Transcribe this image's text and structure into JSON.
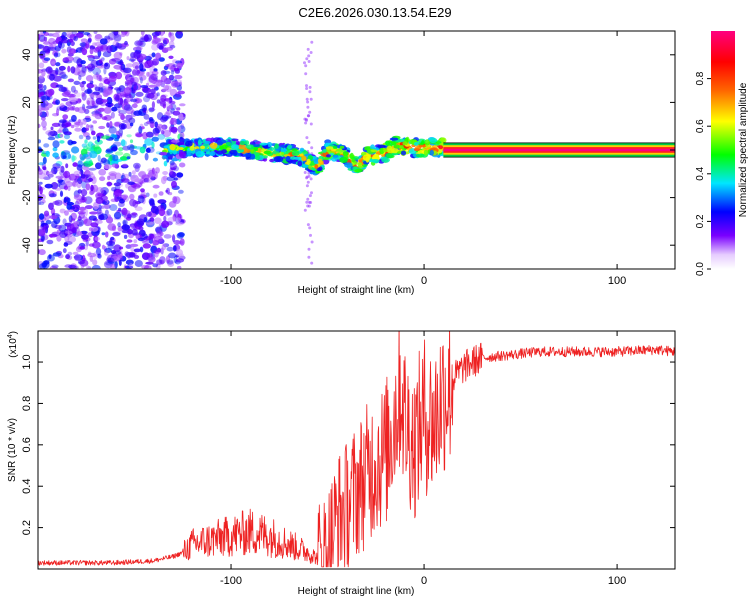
{
  "figure_title": "C2E6.2026.030.13.54.E29",
  "chart_data": [
    {
      "type": "heatmap",
      "title": "C2E6.2026.030.13.54.E29",
      "xlabel": "Height of straight line (km)",
      "ylabel": "Frequency (Hz)",
      "xlim": [
        -200,
        130
      ],
      "ylim": [
        -50,
        50
      ],
      "xticks": [
        -100,
        0,
        100
      ],
      "xtick_labels": [
        "-100",
        "0",
        "100"
      ],
      "yticks": [
        -40,
        -20,
        0,
        20,
        40
      ],
      "ytick_labels": [
        "-40",
        "-20",
        "0",
        "20",
        "40"
      ],
      "colorbar": {
        "label": "Normalized spectral amplitude",
        "range": [
          0,
          1
        ],
        "ticks": [
          0.0,
          0.2,
          0.4,
          0.6,
          0.8
        ],
        "tick_labels": [
          "0.0",
          "0.2",
          "0.4",
          "0.6",
          "0.8"
        ],
        "colors": [
          "#e6ccff",
          "#7a00ff",
          "#0000ff",
          "#00e6ff",
          "#00ff00",
          "#ffff00",
          "#ff6600",
          "#ff0000",
          "#ff0080"
        ]
      },
      "regions": [
        {
          "name": "diffuse noise",
          "x_range": [
            -200,
            -125
          ],
          "freq_spread": 50,
          "level": 0.15
        },
        {
          "name": "sparse noise streak",
          "x_range": [
            -62,
            -58
          ],
          "freq_spread": 50,
          "level": 0.1
        },
        {
          "name": "signal track",
          "x_range": [
            -135,
            10
          ],
          "level": 0.45
        },
        {
          "name": "steady tone",
          "x_range": [
            10,
            130
          ],
          "level": 0.8
        }
      ],
      "signal_track": {
        "x": [
          -135,
          -120,
          -100,
          -80,
          -65,
          -58,
          -55,
          -50,
          -45,
          -40,
          -35,
          -30,
          -25,
          -20,
          -15,
          -10,
          -5,
          0,
          5,
          10
        ],
        "freq_hz": [
          0,
          1,
          1,
          -1,
          -2,
          -6,
          -7,
          0,
          -1,
          -3,
          -7,
          -3,
          -2,
          -1,
          2,
          2,
          1,
          1,
          1,
          1
        ]
      },
      "steady_tone": {
        "x_range": [
          10,
          130
        ],
        "freq_hz": 0
      }
    },
    {
      "type": "line",
      "xlabel": "Height of straight line (km)",
      "ylabel": "SNR (10 * v/v)",
      "y_scale_label": "(x10^4)",
      "y_scale_base": "(x10",
      "y_scale_exp": "4",
      "y_scale_close": ")",
      "xlim": [
        -200,
        130
      ],
      "ylim": [
        0,
        1.15
      ],
      "xticks": [
        -100,
        0,
        100
      ],
      "xtick_labels": [
        "-100",
        "0",
        "100"
      ],
      "yticks": [
        0.2,
        0.4,
        0.6,
        0.8,
        1.0
      ],
      "ytick_labels": [
        "0.2",
        "0.4",
        "0.6",
        "0.8",
        "1.0"
      ],
      "series": [
        {
          "name": "SNR",
          "color": "#ee2222",
          "x": [
            -200,
            -180,
            -160,
            -140,
            -130,
            -125,
            -120,
            -110,
            -100,
            -90,
            -80,
            -70,
            -60,
            -55,
            -50,
            -45,
            -40,
            -35,
            -30,
            -25,
            -20,
            -15,
            -12,
            -10,
            -5,
            0,
            5,
            10,
            15,
            20,
            25,
            30,
            40,
            50,
            60,
            80,
            100,
            120,
            130
          ],
          "y": [
            0.03,
            0.03,
            0.03,
            0.04,
            0.06,
            0.08,
            0.12,
            0.14,
            0.16,
            0.18,
            0.16,
            0.12,
            0.08,
            0.05,
            0.1,
            0.25,
            0.3,
            0.38,
            0.45,
            0.52,
            0.55,
            0.75,
            0.9,
            0.72,
            0.6,
            0.75,
            0.7,
            0.85,
            0.92,
            0.97,
            1.0,
            1.02,
            1.03,
            1.04,
            1.05,
            1.05,
            1.05,
            1.06,
            1.05
          ]
        }
      ]
    }
  ]
}
